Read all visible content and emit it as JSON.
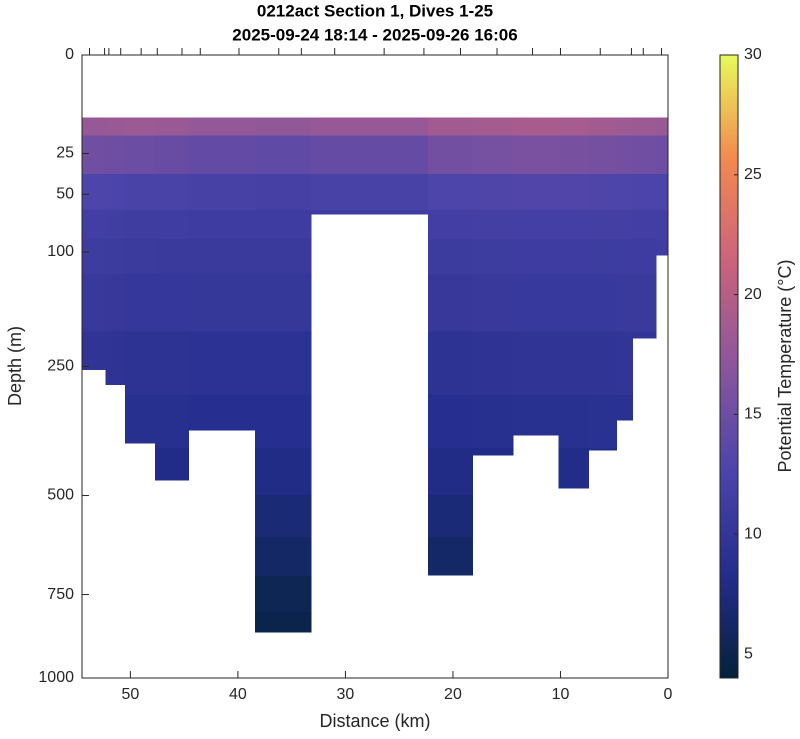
{
  "chart_data": {
    "type": "section",
    "title": "0212act Section 1, Dives 1-25",
    "subtitle": "2025-09-24 18:14 - 2025-09-26 16:06",
    "x_label": "Distance (km)",
    "y_label": "Depth (m)",
    "colorbar_label": "Potential Temperature (°C)",
    "xlim": [
      54.5,
      0
    ],
    "xticks": [
      50,
      40,
      30,
      20,
      10,
      0
    ],
    "xticks_top": [
      53.8,
      52.4,
      52.0,
      50.9,
      49.0,
      47.5,
      45.2,
      43.5,
      39.9,
      36.2,
      34.1,
      31.0,
      26.4,
      22.7,
      19.3,
      15.9,
      12.6,
      10.0,
      6.3,
      3.4,
      2.3,
      0.6
    ],
    "ylim": [
      0,
      1000
    ],
    "yscale": "sqrt",
    "y_reversed": true,
    "yticks": [
      0,
      25,
      50,
      100,
      250,
      500,
      750,
      1000
    ],
    "clim": [
      4,
      30
    ],
    "cticks": [
      5,
      10,
      15,
      20,
      25,
      30
    ],
    "colormap": [
      "#03223a",
      "#232d8c",
      "#4c44aa",
      "#8a569c",
      "#c9637c",
      "#f2894f",
      "#e8fa5b"
    ],
    "x_edges": [
      54.5,
      52.3,
      50.5,
      47.7,
      44.6,
      38.4,
      33.2,
      22.3,
      18.2,
      14.4,
      10.2,
      7.4,
      4.8,
      3.3,
      1.1,
      0
    ],
    "depth": [
      10,
      25,
      50,
      75,
      100,
      150,
      250,
      350,
      450,
      550,
      650,
      750,
      850
    ],
    "bottom_depth": [
      255,
      280,
      388,
      465,
      362,
      858,
      65,
      697,
      412,
      372,
      483,
      402,
      343,
      206,
      103
    ],
    "values": [
      [
        17.8,
        15.2,
        12.8,
        11.6,
        11.1,
        10.5,
        9.6,
        null,
        null,
        null,
        null,
        null,
        null
      ],
      [
        18.0,
        15.0,
        12.6,
        11.5,
        11.0,
        10.4,
        9.5,
        null,
        null,
        null,
        null,
        null,
        null
      ],
      [
        18.2,
        14.8,
        12.4,
        11.4,
        10.9,
        10.3,
        9.4,
        8.8,
        null,
        null,
        null,
        null,
        null
      ],
      [
        18.0,
        14.6,
        12.3,
        11.3,
        10.8,
        10.3,
        9.4,
        8.8,
        8.1,
        null,
        null,
        null,
        null
      ],
      [
        17.6,
        14.2,
        12.1,
        11.2,
        10.8,
        10.2,
        9.3,
        8.7,
        null,
        null,
        null,
        null,
        null
      ],
      [
        17.5,
        14.0,
        12.0,
        11.2,
        10.8,
        10.2,
        9.3,
        8.7,
        8.0,
        7.1,
        6.2,
        5.4,
        4.9
      ],
      [
        17.8,
        14.4,
        12.2,
        11.3,
        null,
        null,
        null,
        null,
        null,
        null,
        null,
        null,
        null
      ],
      [
        18.6,
        15.4,
        12.8,
        11.6,
        11.0,
        10.4,
        9.4,
        8.7,
        8.0,
        7.2,
        6.3,
        null,
        null
      ],
      [
        18.8,
        15.6,
        12.9,
        11.7,
        11.1,
        10.5,
        9.5,
        8.8,
        8.1,
        null,
        null,
        null,
        null
      ],
      [
        19.0,
        15.8,
        13.0,
        11.8,
        11.2,
        10.6,
        9.6,
        8.9,
        null,
        null,
        null,
        null,
        null
      ],
      [
        18.9,
        15.7,
        13.0,
        11.8,
        11.2,
        10.6,
        9.6,
        8.9,
        8.2,
        null,
        null,
        null,
        null
      ],
      [
        18.6,
        15.5,
        12.9,
        11.7,
        11.1,
        10.6,
        9.7,
        9.0,
        8.3,
        null,
        null,
        null,
        null
      ],
      [
        18.4,
        15.4,
        12.8,
        11.7,
        11.2,
        10.7,
        9.8,
        9.1,
        null,
        null,
        null,
        null,
        null
      ],
      [
        18.2,
        15.2,
        12.7,
        11.6,
        11.2,
        10.7,
        9.9,
        null,
        null,
        null,
        null,
        null,
        null
      ],
      [
        18.0,
        15.0,
        12.6,
        11.6,
        11.3,
        null,
        null,
        null,
        null,
        null,
        null,
        null,
        null
      ]
    ]
  }
}
